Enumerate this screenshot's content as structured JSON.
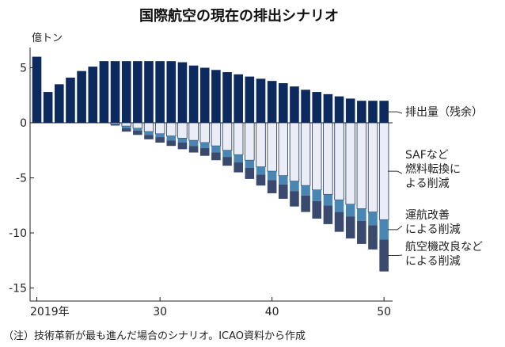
{
  "chart_data": {
    "type": "bar",
    "title": "国際航空の現在の排出シナリオ",
    "ylabel": "億トン",
    "ylim": [
      -16,
      6.5
    ],
    "yticks": [
      5,
      0,
      -5,
      -10,
      -15
    ],
    "xticks": [
      {
        "year": 2019,
        "label": "2019年"
      },
      {
        "year": 2030,
        "label": "30"
      },
      {
        "year": 2040,
        "label": "40"
      },
      {
        "year": 2050,
        "label": "50"
      }
    ],
    "x": [
      2019,
      2020,
      2021,
      2022,
      2023,
      2024,
      2025,
      2026,
      2027,
      2028,
      2029,
      2030,
      2031,
      2032,
      2033,
      2034,
      2035,
      2036,
      2037,
      2038,
      2039,
      2040,
      2041,
      2042,
      2043,
      2044,
      2045,
      2046,
      2047,
      2048,
      2049,
      2050
    ],
    "series": [
      {
        "name": "排出量（残余）",
        "color": "#0d2a5e",
        "values": [
          6.0,
          2.8,
          3.5,
          4.1,
          4.7,
          5.1,
          5.6,
          5.6,
          5.6,
          5.6,
          5.6,
          5.6,
          5.6,
          5.5,
          5.2,
          5.0,
          4.8,
          4.6,
          4.4,
          4.2,
          4.0,
          3.8,
          3.6,
          3.3,
          3.0,
          2.8,
          2.6,
          2.4,
          2.2,
          2.0,
          2.0,
          2.0
        ]
      },
      {
        "name": "SAFなど燃料転換による削減",
        "color": "#eaedf5",
        "values": [
          0,
          0,
          0,
          0,
          0,
          0,
          0,
          0.1,
          0.3,
          0.5,
          0.8,
          1.0,
          1.2,
          1.4,
          1.6,
          1.8,
          2.1,
          2.5,
          2.9,
          3.4,
          4.0,
          4.4,
          4.8,
          5.3,
          5.7,
          6.1,
          6.5,
          7.0,
          7.4,
          7.8,
          8.1,
          8.8
        ]
      },
      {
        "name": "運航改善による削減",
        "color": "#4a86b4",
        "values": [
          0,
          0,
          0,
          0,
          0,
          0,
          0,
          0.05,
          0.2,
          0.2,
          0.3,
          0.3,
          0.4,
          0.4,
          0.5,
          0.5,
          0.6,
          0.6,
          0.7,
          0.7,
          0.7,
          0.8,
          0.8,
          0.9,
          0.9,
          1.0,
          1.0,
          1.1,
          1.1,
          1.1,
          1.2,
          1.8
        ]
      },
      {
        "name": "航空機改良などによる削減",
        "color": "#3a4a6e",
        "values": [
          0,
          0,
          0,
          0,
          0,
          0,
          0,
          0.1,
          0.3,
          0.4,
          0.4,
          0.5,
          0.5,
          0.6,
          0.6,
          0.7,
          0.7,
          0.8,
          0.9,
          1.0,
          1.0,
          1.2,
          1.3,
          1.4,
          1.5,
          1.6,
          1.7,
          1.8,
          2.0,
          2.1,
          2.2,
          2.9
        ]
      }
    ],
    "annotations": [
      {
        "lines": [
          "排出量（残余）"
        ],
        "series": 0
      },
      {
        "lines": [
          "SAFなど",
          "燃料転換に",
          "よる削減"
        ],
        "series": 1
      },
      {
        "lines": [
          "運航改善",
          "による削減"
        ],
        "series": 2
      },
      {
        "lines": [
          "航空機改良など",
          "による削減"
        ],
        "series": 3
      }
    ]
  },
  "note": "（注）技術革新が最も進んだ場合のシナリオ。ICAO資料から作成"
}
